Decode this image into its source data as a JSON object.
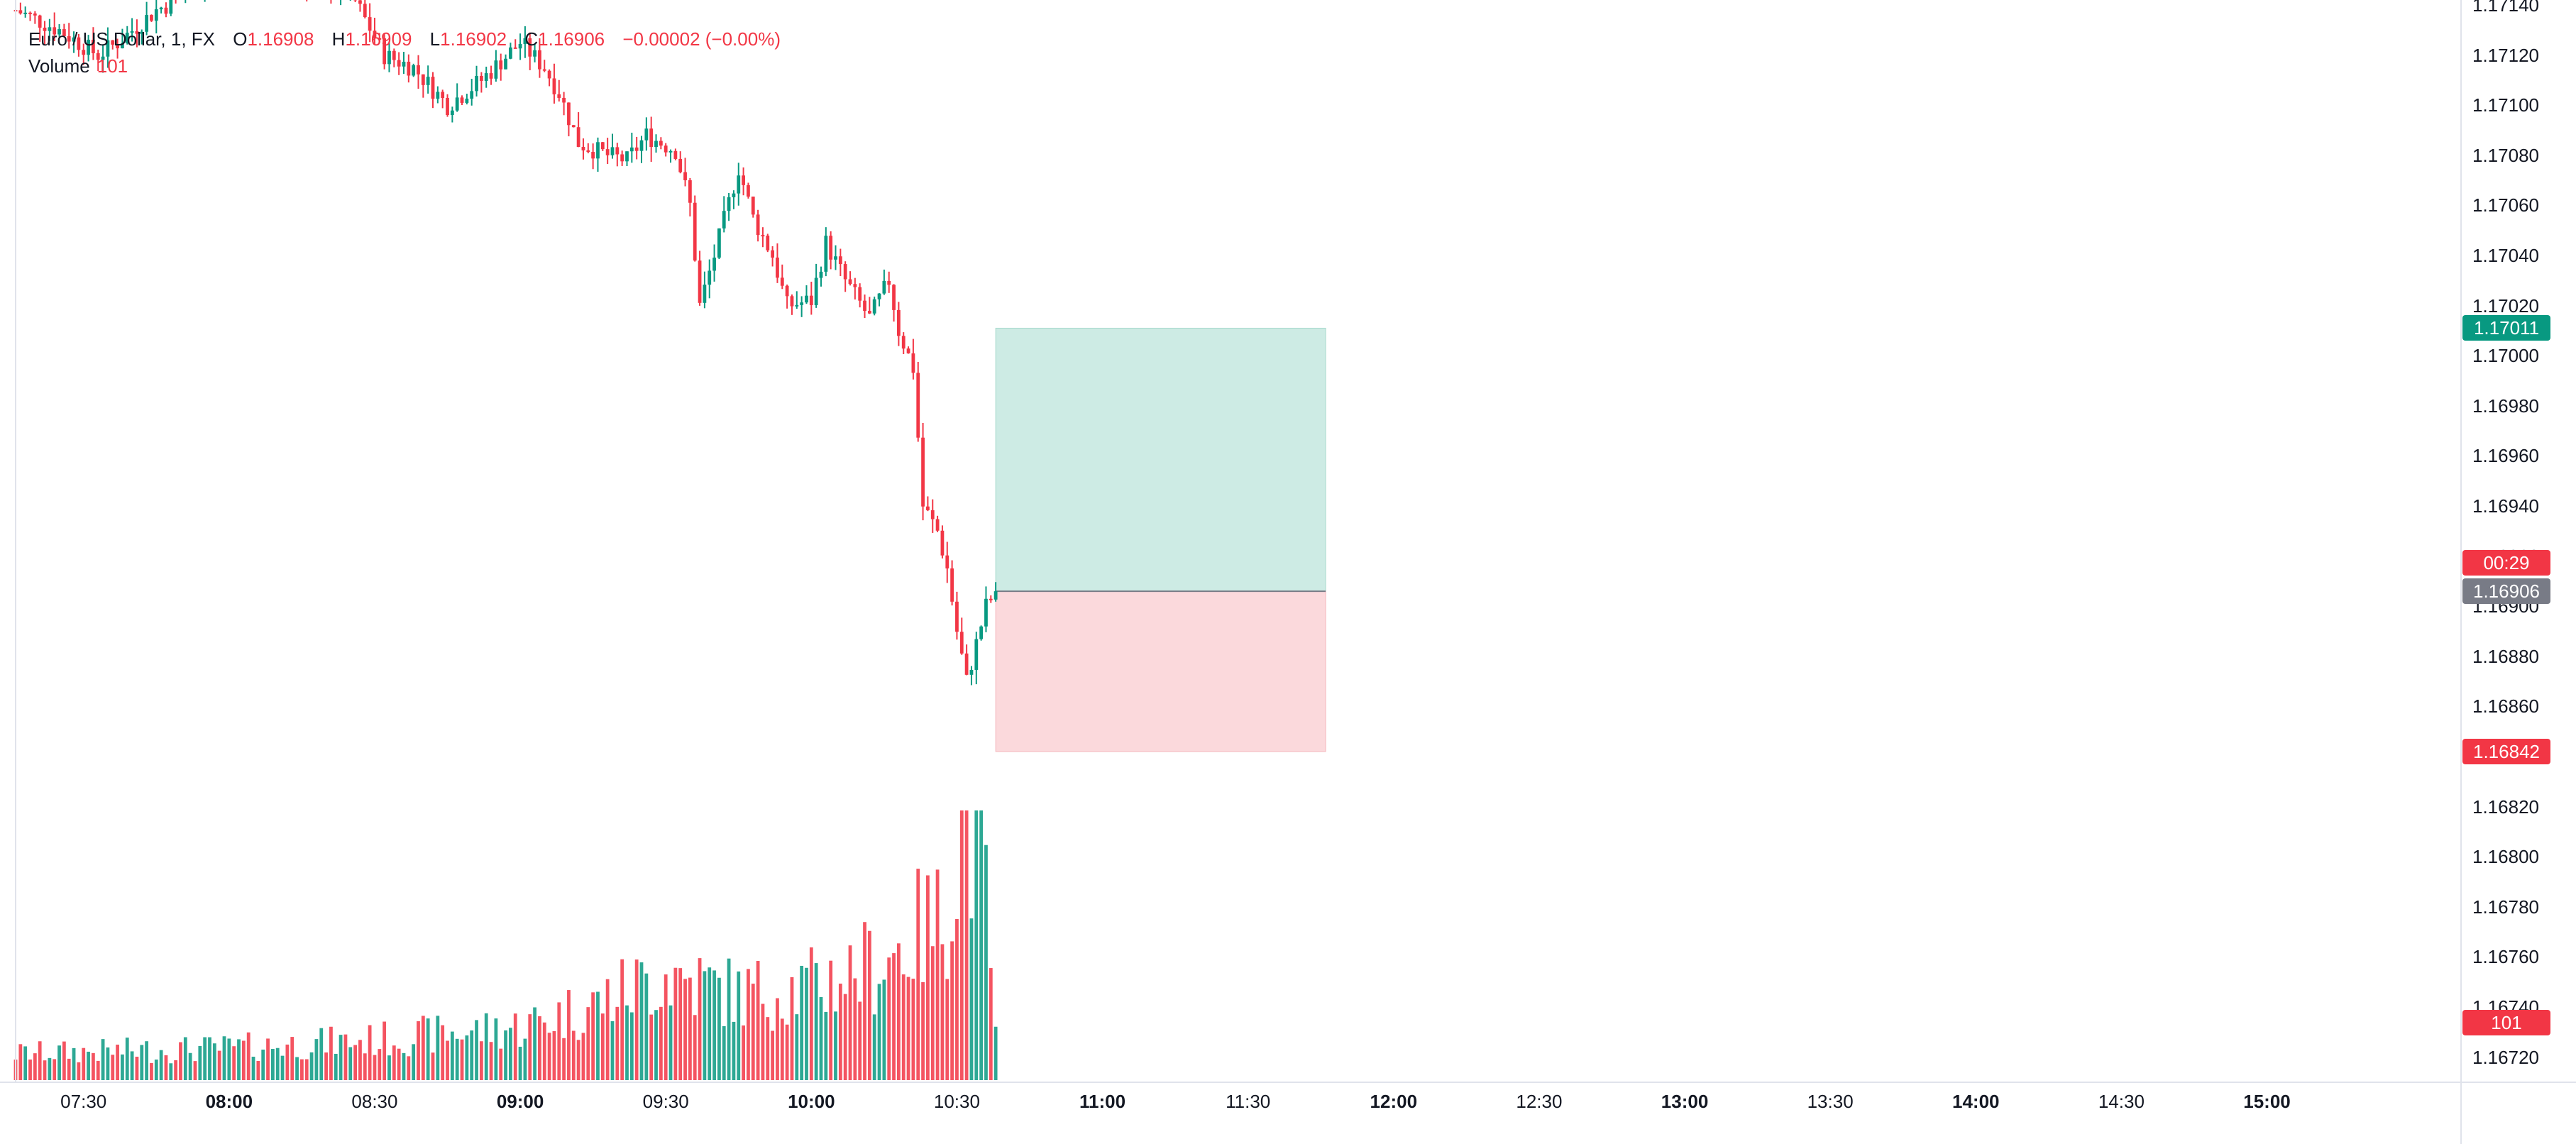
{
  "legend": {
    "symbol": "Euro / US Dollar, 1, FX",
    "open_label": "O",
    "open": "1.16908",
    "high_label": "H",
    "high": "1.16909",
    "low_label": "L",
    "low": "1.16902",
    "close_label": "C",
    "close": "1.16906",
    "change": "−0.00002 (−0.00%)"
  },
  "volume_legend": {
    "label": "Volume",
    "value": "101"
  },
  "colors": {
    "up": "#089981",
    "down": "#f23645",
    "profit_zone": "#cdebe4",
    "loss_zone": "#fbd9dc",
    "axis_text": "#131722"
  },
  "badges": {
    "target": {
      "value": "1.17011",
      "color": "#089981"
    },
    "countdown": {
      "value": "00:29",
      "color": "#f23645"
    },
    "current": {
      "value": "1.16906",
      "color": "#787b86"
    },
    "stop": {
      "value": "1.16842",
      "color": "#f23645"
    },
    "volume": {
      "value": "101",
      "color": "#f23645"
    }
  },
  "chart_data": {
    "type": "candlestick",
    "symbol": "Euro / US Dollar",
    "interval": "1",
    "ylim": [
      1.1671,
      1.17142
    ],
    "price_ticks": [
      "1.17140",
      "1.17120",
      "1.17100",
      "1.17080",
      "1.17060",
      "1.17040",
      "1.17020",
      "1.17000",
      "1.16980",
      "1.16960",
      "1.16940",
      "1.16920",
      "1.16900",
      "1.16880",
      "1.16860",
      "1.16840",
      "1.16820",
      "1.16800",
      "1.16780",
      "1.16760",
      "1.16740",
      "1.16720"
    ],
    "time_ticks": [
      {
        "label": "07:30",
        "major": false
      },
      {
        "label": "08:00",
        "major": true
      },
      {
        "label": "08:30",
        "major": false
      },
      {
        "label": "09:00",
        "major": true
      },
      {
        "label": "09:30",
        "major": false
      },
      {
        "label": "10:00",
        "major": true
      },
      {
        "label": "10:30",
        "major": false
      },
      {
        "label": "11:00",
        "major": true
      },
      {
        "label": "11:30",
        "major": false
      },
      {
        "label": "12:00",
        "major": true
      },
      {
        "label": "12:30",
        "major": false
      },
      {
        "label": "13:00",
        "major": true
      },
      {
        "label": "13:30",
        "major": false
      },
      {
        "label": "14:00",
        "major": true
      },
      {
        "label": "14:30",
        "major": false
      },
      {
        "label": "15:00",
        "major": true
      }
    ],
    "time_range": [
      "07:16",
      "15:40"
    ],
    "last_bar_time": "10:38",
    "close_path": [
      [
        "07:16",
        1.17138
      ],
      [
        "07:25",
        1.1713
      ],
      [
        "07:33",
        1.1712
      ],
      [
        "07:37",
        1.17125
      ],
      [
        "07:45",
        1.17138
      ],
      [
        "07:55",
        1.17148
      ],
      [
        "08:05",
        1.17152
      ],
      [
        "08:15",
        1.1715
      ],
      [
        "08:25",
        1.17145
      ],
      [
        "08:32",
        1.1712
      ],
      [
        "08:38",
        1.17115
      ],
      [
        "08:45",
        1.171
      ],
      [
        "08:52",
        1.1711
      ],
      [
        "09:00",
        1.17125
      ],
      [
        "09:05",
        1.17115
      ],
      [
        "09:08",
        1.17105
      ],
      [
        "09:12",
        1.17085
      ],
      [
        "09:18",
        1.1708
      ],
      [
        "09:22",
        1.17078
      ],
      [
        "09:26",
        1.17088
      ],
      [
        "09:32",
        1.17082
      ],
      [
        "09:35",
        1.1706
      ],
      [
        "09:37",
        1.1702
      ],
      [
        "09:40",
        1.1704
      ],
      [
        "09:45",
        1.17075
      ],
      [
        "09:48",
        1.17055
      ],
      [
        "09:52",
        1.1704
      ],
      [
        "09:55",
        1.1702
      ],
      [
        "10:00",
        1.17022
      ],
      [
        "10:03",
        1.17045
      ],
      [
        "10:07",
        1.1703
      ],
      [
        "10:12",
        1.17015
      ],
      [
        "10:16",
        1.1703
      ],
      [
        "10:18",
        1.1701
      ],
      [
        "10:21",
        1.16995
      ],
      [
        "10:23",
        1.1694
      ],
      [
        "10:26",
        1.1693
      ],
      [
        "10:28",
        1.16915
      ],
      [
        "10:30",
        1.1689
      ],
      [
        "10:32",
        1.1687
      ],
      [
        "10:34",
        1.16885
      ],
      [
        "10:36",
        1.169
      ],
      [
        "10:38",
        1.16906
      ]
    ],
    "volume_profile": [
      [
        "07:16",
        10
      ],
      [
        "08:00",
        12
      ],
      [
        "08:30",
        15
      ],
      [
        "09:00",
        20
      ],
      [
        "09:15",
        28
      ],
      [
        "09:30",
        40
      ],
      [
        "09:45",
        32
      ],
      [
        "10:00",
        35
      ],
      [
        "10:15",
        45
      ],
      [
        "10:22",
        55
      ],
      [
        "10:27",
        60
      ],
      [
        "10:32",
        100
      ],
      [
        "10:36",
        70
      ],
      [
        "10:38",
        20
      ]
    ],
    "volume_max": 101,
    "position": {
      "type": "long",
      "start_time": "10:38",
      "end_time": "11:46",
      "entry": 1.16906,
      "target": 1.17011,
      "stop": 1.16842
    }
  }
}
